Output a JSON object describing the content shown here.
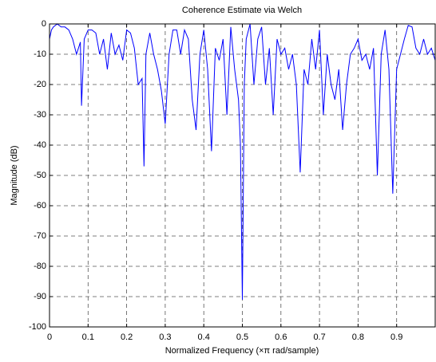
{
  "chart_data": {
    "type": "line",
    "title": "Coherence Estimate via Welch",
    "xlabel": "Normalized Frequency (×π rad/sample)",
    "ylabel": "Magnitude (dB)",
    "xlim": [
      0,
      1
    ],
    "ylim": [
      -100,
      0
    ],
    "xticks": [
      0,
      0.1,
      0.2,
      0.3,
      0.4,
      0.5,
      0.6,
      0.7,
      0.8,
      0.9
    ],
    "yticks": [
      -100,
      -90,
      -80,
      -70,
      -60,
      -50,
      -40,
      -30,
      -20,
      -10,
      0
    ],
    "grid": true,
    "x": [
      0,
      0.005,
      0.01,
      0.02,
      0.03,
      0.04,
      0.05,
      0.06,
      0.07,
      0.08,
      0.083,
      0.09,
      0.1,
      0.11,
      0.12,
      0.13,
      0.14,
      0.15,
      0.16,
      0.17,
      0.18,
      0.19,
      0.2,
      0.21,
      0.22,
      0.23,
      0.24,
      0.245,
      0.25,
      0.26,
      0.27,
      0.28,
      0.29,
      0.3,
      0.31,
      0.32,
      0.33,
      0.34,
      0.35,
      0.36,
      0.37,
      0.38,
      0.39,
      0.4,
      0.41,
      0.42,
      0.43,
      0.44,
      0.45,
      0.46,
      0.47,
      0.48,
      0.49,
      0.495,
      0.5,
      0.505,
      0.51,
      0.52,
      0.53,
      0.54,
      0.55,
      0.56,
      0.57,
      0.58,
      0.59,
      0.6,
      0.61,
      0.62,
      0.63,
      0.64,
      0.65,
      0.66,
      0.67,
      0.68,
      0.69,
      0.7,
      0.71,
      0.72,
      0.73,
      0.74,
      0.75,
      0.76,
      0.77,
      0.78,
      0.79,
      0.8,
      0.81,
      0.82,
      0.83,
      0.84,
      0.85,
      0.86,
      0.87,
      0.88,
      0.89,
      0.9,
      0.91,
      0.92,
      0.93,
      0.94,
      0.95,
      0.96,
      0.97,
      0.98,
      0.99,
      1.0
    ],
    "series": [
      {
        "color": "#0000ff",
        "values": [
          -5,
          -2,
          -1,
          0,
          -1,
          -1,
          -2,
          -5,
          -10,
          -6,
          -27,
          -5,
          -2,
          -2,
          -3,
          -10,
          -5,
          -15,
          -3,
          -10,
          -7,
          -12,
          -2,
          -3,
          -8,
          -20,
          -18,
          -47,
          -10,
          -3,
          -10,
          -15,
          -22,
          -33,
          -10,
          -2,
          -2,
          -10,
          -2,
          -5,
          -25,
          -35,
          -10,
          -2,
          -15,
          -42,
          -8,
          -12,
          -5,
          -30,
          -1,
          -15,
          -25,
          -40,
          -91,
          -20,
          -5,
          0,
          -20,
          -5,
          -1,
          -20,
          -8,
          -30,
          -5,
          -10,
          -8,
          -15,
          -10,
          -20,
          -49,
          -15,
          -20,
          -5,
          -15,
          -2,
          -30,
          -10,
          -20,
          -25,
          -15,
          -35,
          -20,
          -10,
          -8,
          -5,
          -12,
          -10,
          -15,
          -8,
          -50,
          -10,
          -2,
          -15,
          -56,
          -15,
          -10,
          -5,
          -0.5,
          -1,
          -8,
          -10,
          -5,
          -10,
          -8,
          -12
        ]
      }
    ]
  }
}
